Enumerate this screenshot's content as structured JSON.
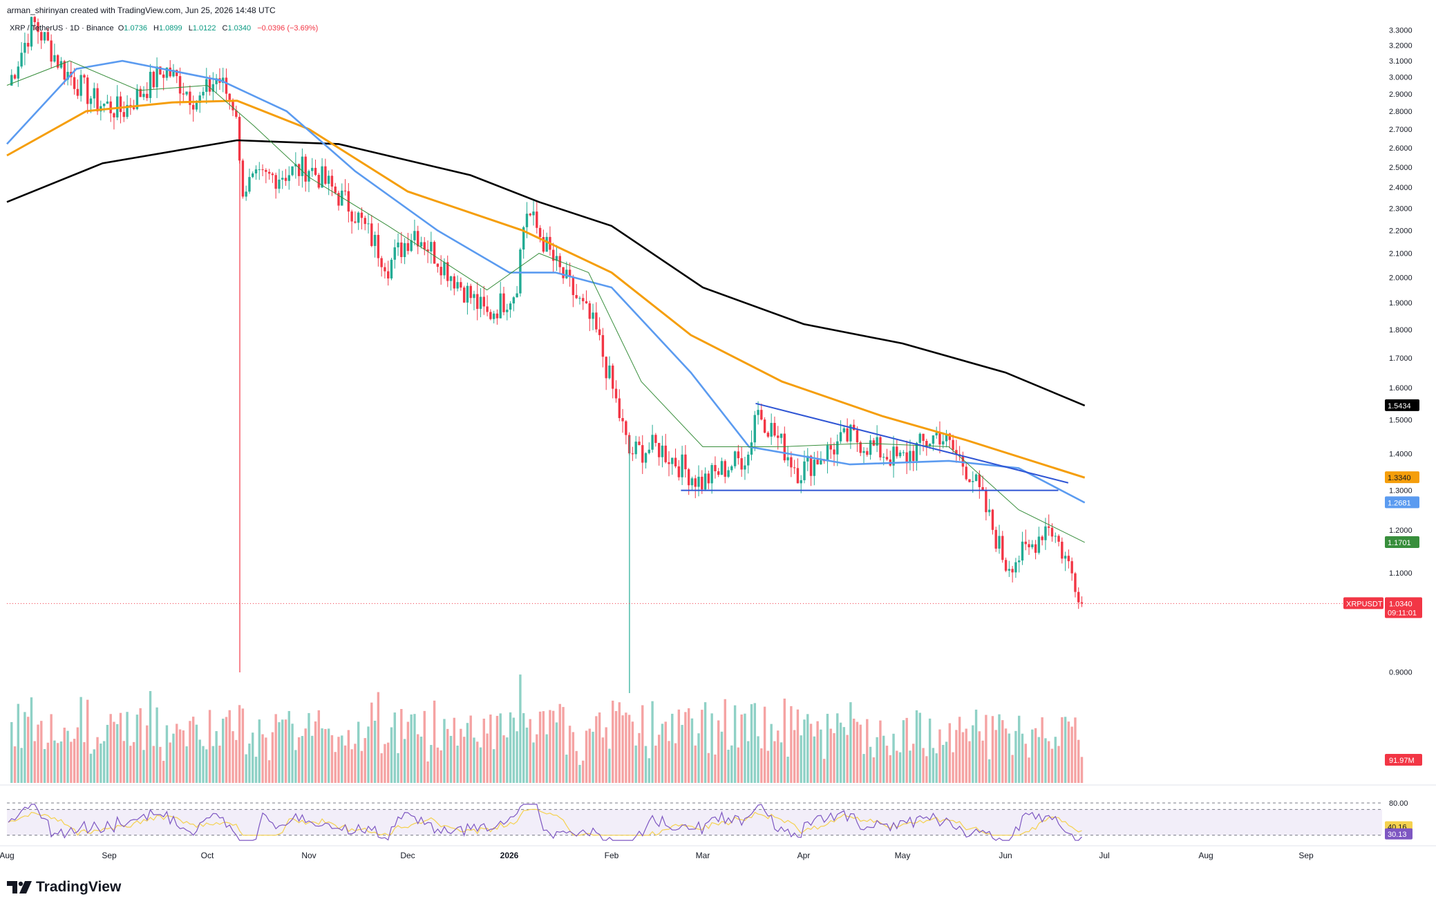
{
  "header": {
    "credit": "arman_shirinyan created with TradingView.com, Jun 25, 2026 14:48 UTC",
    "symbol": "XRP / TetherUS · 1D · Binance",
    "open_label": "O",
    "open": "1.0736",
    "high_label": "H",
    "high": "1.0899",
    "low_label": "L",
    "low": "1.0122",
    "close_label": "C",
    "close": "1.0340",
    "change": "−0.0396 (−3.69%)"
  },
  "brand": {
    "name": "TradingView",
    "icon": "tradingview-logo-icon"
  },
  "colors": {
    "up": "#22ab94",
    "down": "#f23645",
    "up_vol": "#8fd1c6",
    "down_vol": "#f5a3a3",
    "sma200": "#000000",
    "sma100": "#f59e0b",
    "sma50": "#5b9bf0",
    "sma20": "#388e3c",
    "rsi": "#7e57c2",
    "rsi_ma": "#f5d14e",
    "trend": "#2f55d4"
  },
  "chart_data": {
    "type": "candlestick",
    "symbol": "XRPUSDT",
    "interval": "1D",
    "price_scale": {
      "ticks": [
        "3.3000",
        "3.2000",
        "3.1000",
        "3.0000",
        "2.9000",
        "2.8000",
        "2.7000",
        "2.6000",
        "2.5000",
        "2.4000",
        "2.3000",
        "2.2000",
        "2.1000",
        "2.0000",
        "1.9000",
        "1.8000",
        "1.7000",
        "1.6000",
        "1.5000",
        "1.4000",
        "1.3000",
        "1.2000",
        "1.1000",
        "0.9000"
      ],
      "range": [
        0.84,
        3.4
      ]
    },
    "time_axis": [
      "Aug",
      "Sep",
      "Oct",
      "Nov",
      "Dec",
      "2026",
      "Feb",
      "Mar",
      "Apr",
      "May",
      "Jun",
      "Jul",
      "Aug",
      "Sep"
    ],
    "ohlc_anchors": [
      {
        "date": "Aug",
        "close": 2.95
      },
      {
        "date": "Aug 9",
        "close": 3.35
      },
      {
        "date": "Aug 18",
        "close": 3.05
      },
      {
        "date": "Aug 28",
        "close": 2.85
      },
      {
        "date": "Sep 5",
        "close": 2.8
      },
      {
        "date": "Sep 18",
        "close": 3.05
      },
      {
        "date": "Sep 28",
        "close": 2.85
      },
      {
        "date": "Oct 4",
        "close": 3.0
      },
      {
        "date": "Oct 10",
        "close": 2.8
      },
      {
        "date": "Oct 11",
        "close": 2.4
      },
      {
        "date": "Oct 20",
        "close": 2.45
      },
      {
        "date": "Nov 1",
        "close": 2.5
      },
      {
        "date": "Nov 14",
        "close": 2.3
      },
      {
        "date": "Nov 25",
        "close": 2.05
      },
      {
        "date": "Dec 3",
        "close": 2.2
      },
      {
        "date": "Dec 15",
        "close": 2.0
      },
      {
        "date": "Dec 25",
        "close": 1.85
      },
      {
        "date": "Jan 3",
        "close": 1.95
      },
      {
        "date": "Jan 6",
        "close": 2.3
      },
      {
        "date": "Jan 15",
        "close": 2.05
      },
      {
        "date": "Jan 27",
        "close": 1.8
      },
      {
        "date": "Feb 5",
        "close": 1.45
      },
      {
        "date": "Feb 6",
        "close": 1.4
      },
      {
        "date": "Feb 15",
        "close": 1.42
      },
      {
        "date": "Feb 28",
        "close": 1.32
      },
      {
        "date": "Mar 15",
        "close": 1.4
      },
      {
        "date": "Mar 17",
        "close": 1.54
      },
      {
        "date": "Mar 30",
        "close": 1.35
      },
      {
        "date": "Apr 15",
        "close": 1.45
      },
      {
        "date": "Apr 30",
        "close": 1.38
      },
      {
        "date": "May 12",
        "close": 1.46
      },
      {
        "date": "May 22",
        "close": 1.34
      },
      {
        "date": "Jun 1",
        "close": 1.12
      },
      {
        "date": "Jun 8",
        "close": 1.15
      },
      {
        "date": "Jun 14",
        "close": 1.22
      },
      {
        "date": "Jun 25",
        "close": 1.034
      }
    ],
    "moving_averages": [
      {
        "name": "200",
        "label": "1.5434",
        "color": "#000000",
        "points": [
          [
            "Aug",
            2.33
          ],
          [
            "Aug 30",
            2.52
          ],
          [
            "Oct 10",
            2.64
          ],
          [
            "Nov 10",
            2.62
          ],
          [
            "Dec 20",
            2.46
          ],
          [
            "Jan 10",
            2.33
          ],
          [
            "Feb 1",
            2.22
          ],
          [
            "Mar 1",
            1.96
          ],
          [
            "Apr 1",
            1.82
          ],
          [
            "May 1",
            1.75
          ],
          [
            "Jun 1",
            1.65
          ],
          [
            "Jun 25",
            1.5434
          ]
        ]
      },
      {
        "name": "100",
        "label": "1.3340",
        "color": "#f59e0b",
        "points": [
          [
            "Aug",
            2.56
          ],
          [
            "Aug 25",
            2.8
          ],
          [
            "Sep 20",
            2.85
          ],
          [
            "Oct 10",
            2.86
          ],
          [
            "Nov 1",
            2.7
          ],
          [
            "Dec 1",
            2.38
          ],
          [
            "Jan 5",
            2.2
          ],
          [
            "Feb 1",
            2.02
          ],
          [
            "Feb 25",
            1.78
          ],
          [
            "Mar 25",
            1.62
          ],
          [
            "Apr 25",
            1.51
          ],
          [
            "May 20",
            1.44
          ],
          [
            "Jun 25",
            1.334
          ]
        ]
      },
      {
        "name": "50",
        "label": "1.2681",
        "color": "#5b9bf0",
        "points": [
          [
            "Aug",
            2.62
          ],
          [
            "Aug 22",
            3.05
          ],
          [
            "Sep 5",
            3.1
          ],
          [
            "Oct 5",
            2.98
          ],
          [
            "Oct 25",
            2.8
          ],
          [
            "Nov 15",
            2.48
          ],
          [
            "Dec 10",
            2.2
          ],
          [
            "Jan 1",
            2.02
          ],
          [
            "Jan 15",
            2.02
          ],
          [
            "Feb 1",
            1.96
          ],
          [
            "Feb 25",
            1.65
          ],
          [
            "Mar 15",
            1.42
          ],
          [
            "Apr 15",
            1.37
          ],
          [
            "May 15",
            1.38
          ],
          [
            "Jun 5",
            1.36
          ],
          [
            "Jun 25",
            1.2681
          ]
        ]
      },
      {
        "name": "20",
        "label": "1.1701",
        "color": "#388e3c",
        "points": [
          [
            "Aug",
            2.95
          ],
          [
            "Aug 20",
            3.1
          ],
          [
            "Sep 10",
            2.92
          ],
          [
            "Oct 1",
            2.95
          ],
          [
            "Oct 15",
            2.72
          ],
          [
            "Nov 1",
            2.45
          ],
          [
            "Nov 25",
            2.22
          ],
          [
            "Dec 25",
            1.95
          ],
          [
            "Jan 10",
            2.1
          ],
          [
            "Jan 25",
            2.02
          ],
          [
            "Feb 10",
            1.62
          ],
          [
            "Mar 1",
            1.42
          ],
          [
            "Mar 25",
            1.42
          ],
          [
            "Apr 20",
            1.43
          ],
          [
            "May 15",
            1.42
          ],
          [
            "Jun 5",
            1.25
          ],
          [
            "Jun 25",
            1.1701
          ]
        ]
      }
    ],
    "trendlines": [
      {
        "name": "descending-resistance",
        "from": [
          "Mar 17",
          1.55
        ],
        "to": [
          "Jun 20",
          1.32
        ]
      },
      {
        "name": "horizontal-support",
        "from": [
          "Feb 22",
          1.3
        ],
        "to": [
          "Jun 17",
          1.3
        ]
      }
    ],
    "last_price": {
      "label": "XRPUSDT",
      "value": "1.0340",
      "countdown": "09:11:01"
    },
    "volume": {
      "label": "91.97M"
    },
    "rsi": {
      "levels": [
        "80.00"
      ],
      "value": "40.16",
      "ma_value": "30.13",
      "band": [
        30,
        70
      ]
    }
  }
}
